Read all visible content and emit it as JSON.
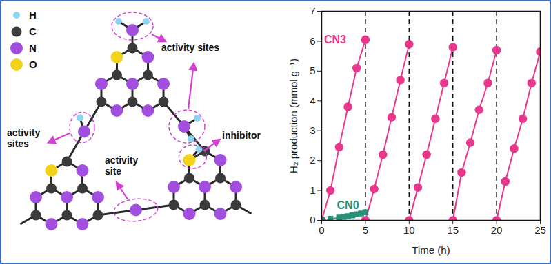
{
  "chart_data": {
    "type": "line",
    "x_label": "Time (h)",
    "y_label": "H₂ production (mmol g⁻¹)",
    "xlim": [
      0,
      25
    ],
    "xticks": [
      0,
      5,
      10,
      15,
      20,
      25
    ],
    "ylim": [
      0,
      7
    ],
    "yticks": [
      0,
      1,
      2,
      3,
      4,
      5,
      6,
      7
    ],
    "vertical_lines": [
      5,
      10,
      15,
      20
    ],
    "series": [
      {
        "name": "CN3",
        "color": "#e8378c",
        "marker": "circle",
        "line_style": "solid",
        "x": [
          0,
          1,
          2,
          3,
          4,
          5,
          5,
          5,
          6,
          7,
          8,
          9,
          10,
          10,
          10,
          11,
          12,
          13,
          14,
          15,
          15,
          15,
          16,
          17,
          18,
          19,
          20,
          20,
          20,
          21,
          22,
          23,
          24,
          25
        ],
        "values": [
          0,
          1.0,
          2.45,
          3.8,
          5.1,
          6.05,
          null,
          0,
          1.05,
          2.2,
          3.45,
          4.7,
          5.9,
          null,
          0,
          1.1,
          2.2,
          3.4,
          4.6,
          5.8,
          null,
          0,
          1.6,
          2.6,
          3.7,
          4.6,
          5.7,
          null,
          0,
          1.3,
          2.4,
          3.4,
          4.6,
          5.65
        ]
      },
      {
        "name": "CN0",
        "color": "#2b9078",
        "marker": "square",
        "line_style": "dashed",
        "x": [
          0,
          1,
          2,
          2.5,
          3,
          3.5,
          4,
          4.5,
          5
        ],
        "values": [
          0,
          0.05,
          0.09,
          0.12,
          0.14,
          0.17,
          0.2,
          0.23,
          0.27
        ]
      }
    ]
  },
  "diagram": {
    "legend": [
      "H",
      "C",
      "N",
      "O"
    ],
    "annotations": [
      "activity sites",
      "activity sites",
      "activity site",
      "inhibitor"
    ]
  }
}
